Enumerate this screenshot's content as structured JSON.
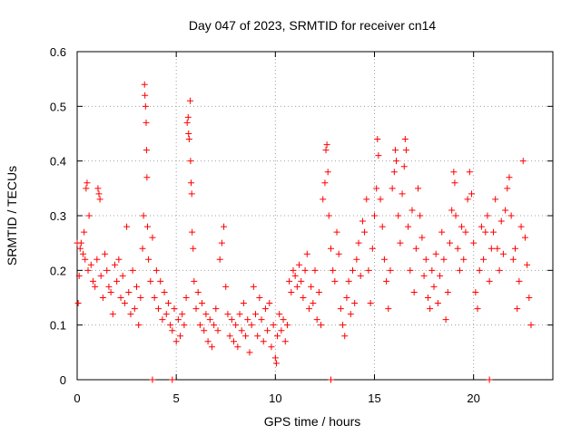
{
  "chart_data": {
    "type": "scatter",
    "title": "Day 047 of 2023, SRMTID for receiver cn14",
    "xlabel": "GPS time / hours",
    "ylabel": "SRMTID / TECUs",
    "xlim": [
      0,
      24
    ],
    "ylim": [
      0,
      0.6
    ],
    "xticks": [
      0,
      5,
      10,
      15,
      20
    ],
    "yticks": [
      0,
      0.1,
      0.2,
      0.3,
      0.4,
      0.5,
      0.6
    ],
    "xtick_labels": [
      "0",
      "5",
      "10",
      "15",
      "20"
    ],
    "ytick_labels": [
      "0",
      "0.1",
      "0.2",
      "0.3",
      "0.4",
      "0.5",
      "0.6"
    ],
    "grid": true,
    "marker": "+",
    "color": "#ff0000",
    "series": [
      {
        "name": "SRMTID",
        "points": [
          [
            0.0,
            0.25
          ],
          [
            0.05,
            0.14
          ],
          [
            0.1,
            0.19
          ],
          [
            0.15,
            0.24
          ],
          [
            0.2,
            0.25
          ],
          [
            0.3,
            0.23
          ],
          [
            0.35,
            0.27
          ],
          [
            0.4,
            0.22
          ],
          [
            0.45,
            0.35
          ],
          [
            0.5,
            0.36
          ],
          [
            0.55,
            0.2
          ],
          [
            0.6,
            0.3
          ],
          [
            0.7,
            0.21
          ],
          [
            0.8,
            0.18
          ],
          [
            0.9,
            0.17
          ],
          [
            1.0,
            0.22
          ],
          [
            1.05,
            0.35
          ],
          [
            1.1,
            0.34
          ],
          [
            1.15,
            0.33
          ],
          [
            1.2,
            0.19
          ],
          [
            1.3,
            0.15
          ],
          [
            1.4,
            0.23
          ],
          [
            1.5,
            0.2
          ],
          [
            1.6,
            0.17
          ],
          [
            1.7,
            0.16
          ],
          [
            1.8,
            0.12
          ],
          [
            1.9,
            0.21
          ],
          [
            2.0,
            0.18
          ],
          [
            2.1,
            0.22
          ],
          [
            2.2,
            0.15
          ],
          [
            2.3,
            0.19
          ],
          [
            2.4,
            0.14
          ],
          [
            2.5,
            0.28
          ],
          [
            2.6,
            0.16
          ],
          [
            2.7,
            0.12
          ],
          [
            2.8,
            0.2
          ],
          [
            2.9,
            0.13
          ],
          [
            3.0,
            0.17
          ],
          [
            3.1,
            0.1
          ],
          [
            3.2,
            0.15
          ],
          [
            3.3,
            0.24
          ],
          [
            3.35,
            0.3
          ],
          [
            3.4,
            0.54
          ],
          [
            3.42,
            0.52
          ],
          [
            3.45,
            0.5
          ],
          [
            3.48,
            0.47
          ],
          [
            3.5,
            0.42
          ],
          [
            3.52,
            0.37
          ],
          [
            3.55,
            0.28
          ],
          [
            3.6,
            0.22
          ],
          [
            3.7,
            0.18
          ],
          [
            3.8,
            0.26
          ],
          [
            3.9,
            0.15
          ],
          [
            4.0,
            0.2
          ],
          [
            4.1,
            0.13
          ],
          [
            4.2,
            0.18
          ],
          [
            4.3,
            0.11
          ],
          [
            4.4,
            0.16
          ],
          [
            4.5,
            0.12
          ],
          [
            4.6,
            0.14
          ],
          [
            4.7,
            0.1
          ],
          [
            4.8,
            0.09
          ],
          [
            4.9,
            0.13
          ],
          [
            5.0,
            0.07
          ],
          [
            5.1,
            0.11
          ],
          [
            5.2,
            0.08
          ],
          [
            5.3,
            0.12
          ],
          [
            5.4,
            0.1
          ],
          [
            5.5,
            0.15
          ],
          [
            5.55,
            0.47
          ],
          [
            5.6,
            0.48
          ],
          [
            5.62,
            0.45
          ],
          [
            5.65,
            0.44
          ],
          [
            5.7,
            0.51
          ],
          [
            5.72,
            0.4
          ],
          [
            5.75,
            0.36
          ],
          [
            5.78,
            0.34
          ],
          [
            5.8,
            0.27
          ],
          [
            5.85,
            0.24
          ],
          [
            5.9,
            0.18
          ],
          [
            6.0,
            0.13
          ],
          [
            6.1,
            0.16
          ],
          [
            6.2,
            0.1
          ],
          [
            6.3,
            0.14
          ],
          [
            6.4,
            0.09
          ],
          [
            6.5,
            0.12
          ],
          [
            6.6,
            0.07
          ],
          [
            6.7,
            0.11
          ],
          [
            6.8,
            0.06
          ],
          [
            6.9,
            0.1
          ],
          [
            7.0,
            0.13
          ],
          [
            7.1,
            0.09
          ],
          [
            7.2,
            0.22
          ],
          [
            7.3,
            0.25
          ],
          [
            7.4,
            0.28
          ],
          [
            7.5,
            0.17
          ],
          [
            7.6,
            0.12
          ],
          [
            7.7,
            0.08
          ],
          [
            7.8,
            0.11
          ],
          [
            7.9,
            0.07
          ],
          [
            8.0,
            0.1
          ],
          [
            8.1,
            0.06
          ],
          [
            8.2,
            0.12
          ],
          [
            8.3,
            0.09
          ],
          [
            8.4,
            0.14
          ],
          [
            8.5,
            0.08
          ],
          [
            8.6,
            0.11
          ],
          [
            8.7,
            0.05
          ],
          [
            8.8,
            0.1
          ],
          [
            8.9,
            0.17
          ],
          [
            9.0,
            0.12
          ],
          [
            9.1,
            0.08
          ],
          [
            9.2,
            0.15
          ],
          [
            9.3,
            0.11
          ],
          [
            9.4,
            0.07
          ],
          [
            9.5,
            0.13
          ],
          [
            9.6,
            0.09
          ],
          [
            9.7,
            0.14
          ],
          [
            9.8,
            0.06
          ],
          [
            9.9,
            0.1
          ],
          [
            10.0,
            0.04
          ],
          [
            10.05,
            0.03
          ],
          [
            10.1,
            0.08
          ],
          [
            10.2,
            0.12
          ],
          [
            10.3,
            0.09
          ],
          [
            10.4,
            0.11
          ],
          [
            10.5,
            0.07
          ],
          [
            10.6,
            0.1
          ],
          [
            10.7,
            0.18
          ],
          [
            10.8,
            0.16
          ],
          [
            10.9,
            0.2
          ],
          [
            11.0,
            0.19
          ],
          [
            11.1,
            0.17
          ],
          [
            11.2,
            0.21
          ],
          [
            11.3,
            0.18
          ],
          [
            11.4,
            0.15
          ],
          [
            11.5,
            0.2
          ],
          [
            11.6,
            0.23
          ],
          [
            11.7,
            0.13
          ],
          [
            11.8,
            0.17
          ],
          [
            11.9,
            0.14
          ],
          [
            12.0,
            0.2
          ],
          [
            12.1,
            0.11
          ],
          [
            12.2,
            0.16
          ],
          [
            12.3,
            0.1
          ],
          [
            12.4,
            0.33
          ],
          [
            12.5,
            0.36
          ],
          [
            12.55,
            0.42
          ],
          [
            12.6,
            0.43
          ],
          [
            12.65,
            0.38
          ],
          [
            12.7,
            0.3
          ],
          [
            12.8,
            0.24
          ],
          [
            12.9,
            0.2
          ],
          [
            13.0,
            0.18
          ],
          [
            13.1,
            0.27
          ],
          [
            13.2,
            0.23
          ],
          [
            13.3,
            0.13
          ],
          [
            13.4,
            0.1
          ],
          [
            13.5,
            0.08
          ],
          [
            13.6,
            0.15
          ],
          [
            13.7,
            0.18
          ],
          [
            13.8,
            0.12
          ],
          [
            13.9,
            0.2
          ],
          [
            14.0,
            0.14
          ],
          [
            14.1,
            0.22
          ],
          [
            14.2,
            0.25
          ],
          [
            14.3,
            0.19
          ],
          [
            14.4,
            0.29
          ],
          [
            14.5,
            0.27
          ],
          [
            14.6,
            0.33
          ],
          [
            14.7,
            0.2
          ],
          [
            14.8,
            0.14
          ],
          [
            14.9,
            0.24
          ],
          [
            15.0,
            0.3
          ],
          [
            15.1,
            0.35
          ],
          [
            15.15,
            0.44
          ],
          [
            15.2,
            0.41
          ],
          [
            15.3,
            0.33
          ],
          [
            15.4,
            0.28
          ],
          [
            15.5,
            0.22
          ],
          [
            15.6,
            0.18
          ],
          [
            15.7,
            0.13
          ],
          [
            15.8,
            0.2
          ],
          [
            15.9,
            0.35
          ],
          [
            16.0,
            0.38
          ],
          [
            16.05,
            0.42
          ],
          [
            16.1,
            0.4
          ],
          [
            16.2,
            0.3
          ],
          [
            16.3,
            0.25
          ],
          [
            16.4,
            0.34
          ],
          [
            16.5,
            0.39
          ],
          [
            16.55,
            0.44
          ],
          [
            16.6,
            0.42
          ],
          [
            16.7,
            0.28
          ],
          [
            16.8,
            0.2
          ],
          [
            16.9,
            0.31
          ],
          [
            17.0,
            0.16
          ],
          [
            17.1,
            0.24
          ],
          [
            17.2,
            0.35
          ],
          [
            17.3,
            0.3
          ],
          [
            17.4,
            0.26
          ],
          [
            17.5,
            0.19
          ],
          [
            17.6,
            0.22
          ],
          [
            17.7,
            0.15
          ],
          [
            17.8,
            0.13
          ],
          [
            17.9,
            0.2
          ],
          [
            18.0,
            0.17
          ],
          [
            18.1,
            0.23
          ],
          [
            18.2,
            0.14
          ],
          [
            18.3,
            0.19
          ],
          [
            18.4,
            0.27
          ],
          [
            18.5,
            0.22
          ],
          [
            18.6,
            0.11
          ],
          [
            18.7,
            0.16
          ],
          [
            18.8,
            0.25
          ],
          [
            18.9,
            0.31
          ],
          [
            19.0,
            0.38
          ],
          [
            19.05,
            0.36
          ],
          [
            19.1,
            0.3
          ],
          [
            19.2,
            0.24
          ],
          [
            19.3,
            0.2
          ],
          [
            19.4,
            0.28
          ],
          [
            19.5,
            0.22
          ],
          [
            19.6,
            0.27
          ],
          [
            19.7,
            0.33
          ],
          [
            19.8,
            0.38
          ],
          [
            19.9,
            0.34
          ],
          [
            20.0,
            0.25
          ],
          [
            20.1,
            0.16
          ],
          [
            20.2,
            0.13
          ],
          [
            20.3,
            0.2
          ],
          [
            20.4,
            0.28
          ],
          [
            20.5,
            0.22
          ],
          [
            20.6,
            0.27
          ],
          [
            20.7,
            0.3
          ],
          [
            20.8,
            0.18
          ],
          [
            20.9,
            0.24
          ],
          [
            21.0,
            0.27
          ],
          [
            21.1,
            0.33
          ],
          [
            21.2,
            0.24
          ],
          [
            21.3,
            0.2
          ],
          [
            21.4,
            0.29
          ],
          [
            21.5,
            0.23
          ],
          [
            21.6,
            0.31
          ],
          [
            21.7,
            0.35
          ],
          [
            21.8,
            0.37
          ],
          [
            21.9,
            0.3
          ],
          [
            22.0,
            0.22
          ],
          [
            22.1,
            0.24
          ],
          [
            22.2,
            0.13
          ],
          [
            22.3,
            0.18
          ],
          [
            22.4,
            0.28
          ],
          [
            22.5,
            0.4
          ],
          [
            22.6,
            0.26
          ],
          [
            22.7,
            0.21
          ],
          [
            22.8,
            0.15
          ],
          [
            22.9,
            0.1
          ]
        ]
      },
      {
        "name": "zero markers",
        "points": [
          [
            3.8,
            0.0
          ],
          [
            4.8,
            0.0
          ],
          [
            12.8,
            0.0
          ],
          [
            20.8,
            0.0
          ]
        ]
      }
    ]
  }
}
